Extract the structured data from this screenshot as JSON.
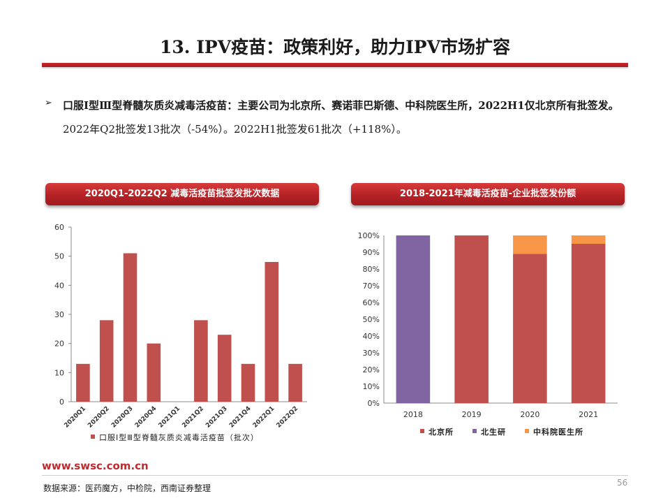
{
  "slide": {
    "title": "13. IPV疫苗：政策利好，助力IPV市场扩容",
    "bullet_symbol": "➢",
    "para_bold": "口服Ⅰ型Ⅲ型脊髓灰质炎减毒活疫苗：主要公司为北京所、赛诺菲巴斯德、中科院医生所，2022H1仅北京所有批签发。",
    "para_normal": "2022年Q2批签发13批次（-54%）。2022H1批签发61批次（+118%）。",
    "footer_url": "www.swsc.com.cn",
    "footer_source": "数据来源：医药魔方，中检院，西南证券整理",
    "page_number": "56"
  },
  "colors": {
    "accent_red": "#c0504d",
    "purple": "#8064a2",
    "orange": "#f79646",
    "title_red": "#b52226"
  },
  "chart_data": [
    {
      "type": "bar",
      "title": "2020Q1-2022Q2 减毒活疫苗批签发批次数据",
      "categories": [
        "2020Q1",
        "2020Q2",
        "2020Q3",
        "2020Q4",
        "2021Q1",
        "2021Q2",
        "2021Q3",
        "2021Q4",
        "2022Q1",
        "2022Q2"
      ],
      "series": [
        {
          "name": "口服Ⅰ型Ⅲ型脊髓灰质炎减毒活疫苗（批次）",
          "values": [
            13,
            28,
            51,
            20,
            0,
            28,
            23,
            13,
            48,
            13
          ],
          "color": "#c0504d"
        }
      ],
      "ylim": [
        0,
        60
      ],
      "yticks": [
        "0",
        "10",
        "20",
        "30",
        "40",
        "50",
        "60"
      ],
      "grid": false,
      "legend": "bottom"
    },
    {
      "type": "bar",
      "stacked": true,
      "title": "2018-2021年减毒活疫苗-企业批签发份额",
      "categories": [
        "2018",
        "2019",
        "2020",
        "2021"
      ],
      "series": [
        {
          "name": "北京所",
          "values": [
            0,
            100,
            89,
            95
          ],
          "color": "#c0504d"
        },
        {
          "name": "北生研",
          "values": [
            100,
            0,
            0,
            0
          ],
          "color": "#8064a2"
        },
        {
          "name": "中科院医生所",
          "values": [
            0,
            0,
            11,
            5
          ],
          "color": "#f79646"
        }
      ],
      "ylim": [
        0,
        100
      ],
      "yticks": [
        "0%",
        "10%",
        "20%",
        "30%",
        "40%",
        "50%",
        "60%",
        "70%",
        "80%",
        "90%",
        "100%"
      ],
      "grid": false,
      "legend": "bottom"
    }
  ]
}
